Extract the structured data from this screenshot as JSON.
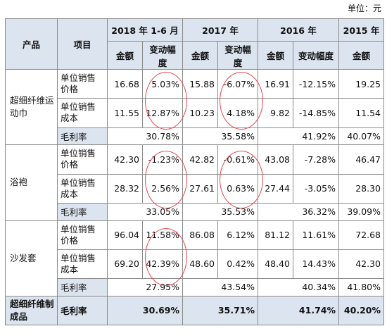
{
  "unit": "单位：元",
  "header": {
    "product": "产品",
    "item": "项目",
    "periods": [
      "2018 年 1-6 月",
      "2017 年",
      "2016 年",
      "2015 年"
    ],
    "amount": "金额",
    "change": "变动幅度"
  },
  "groups": [
    {
      "product": "超细纤维运动巾",
      "rows": [
        {
          "item": "单位销售价格",
          "v2018": "16.68",
          "c2018": "5.03%",
          "v2017": "15.88",
          "c2017": "-6.07%",
          "v2016": "16.91",
          "c2016": "-12.15%",
          "v2015": "19.25"
        },
        {
          "item": "单位销售成本",
          "v2018": "11.55",
          "c2018": "12.87%",
          "v2017": "10.23",
          "c2017": "4.18%",
          "v2016": "9.82",
          "c2016": "-14.85%",
          "v2015": "11.54"
        }
      ],
      "margin": {
        "label": "毛利率",
        "m2018": "30.78%",
        "m2017": "35.58%",
        "m2016": "41.92%",
        "m2015": "40.07%"
      }
    },
    {
      "product": "浴袍",
      "rows": [
        {
          "item": "单位销售价格",
          "v2018": "42.30",
          "c2018": "-1.23%",
          "v2017": "42.82",
          "c2017": "-0.61%",
          "v2016": "43.08",
          "c2016": "-7.28%",
          "v2015": "46.47"
        },
        {
          "item": "单位销售成本",
          "v2018": "28.32",
          "c2018": "2.56%",
          "v2017": "27.61",
          "c2017": "0.63%",
          "v2016": "27.44",
          "c2016": "-3.05%",
          "v2015": "28.30"
        }
      ],
      "margin": {
        "label": "毛利率",
        "m2018": "33.05%",
        "m2017": "35.53%",
        "m2016": "36.32%",
        "m2015": "39.09%"
      }
    },
    {
      "product": "沙发套",
      "rows": [
        {
          "item": "单位销售价格",
          "v2018": "96.04",
          "c2018": "11.58%",
          "v2017": "86.08",
          "c2017": "6.12%",
          "v2016": "81.12",
          "c2016": "11.61%",
          "v2015": "72.68"
        },
        {
          "item": "单位销售成本",
          "v2018": "69.20",
          "c2018": "42.39%",
          "v2017": "48.60",
          "c2017": "0.42%",
          "v2016": "48.40",
          "c2016": "14.43%",
          "v2015": "42.30"
        }
      ],
      "margin": {
        "label": "毛利率",
        "m2018": "27.95%",
        "m2017": "43.54%",
        "m2016": "40.34%",
        "m2015": "41.80%"
      }
    }
  ],
  "total": {
    "product": "超细纤维制成品",
    "label": "毛利率",
    "m2018": "30.69%",
    "m2017": "35.71%",
    "m2016": "41.74%",
    "m2015": "40.20%"
  },
  "annotation_color": "#e8474a"
}
